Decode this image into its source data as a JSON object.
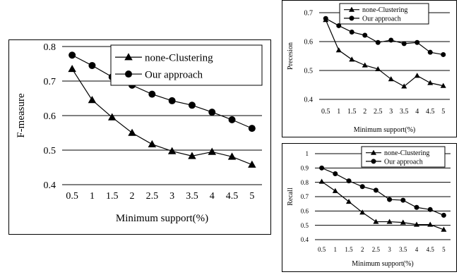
{
  "chart_data": [
    {
      "type": "line",
      "id": "fmeasure",
      "categories": [
        "0.5",
        "1",
        "1.5",
        "2",
        "2.5",
        "3",
        "3.5",
        "4",
        "4.5",
        "5"
      ],
      "series": [
        {
          "name": "none-Clustering",
          "marker": "triangle",
          "values": [
            0.735,
            0.645,
            0.595,
            0.55,
            0.517,
            0.497,
            0.483,
            0.495,
            0.481,
            0.458
          ]
        },
        {
          "name": "Our approach",
          "marker": "circle",
          "values": [
            0.775,
            0.745,
            0.712,
            0.688,
            0.662,
            0.643,
            0.63,
            0.61,
            0.588,
            0.563
          ]
        }
      ],
      "ylabel": "F-measure",
      "xlabel": "Minimum support(%)",
      "ylim": [
        0.4,
        0.8
      ],
      "yticks": [
        "0.4",
        "0.5",
        "0.6",
        "0.7",
        "0.8"
      ],
      "grid": true,
      "legend": "top-right"
    },
    {
      "type": "line",
      "id": "precision",
      "categories": [
        "0.5",
        "1",
        "1.5",
        "2",
        "2.5",
        "3",
        "3.5",
        "4",
        "4.5",
        "5"
      ],
      "series": [
        {
          "name": "none-Clustering",
          "marker": "triangle",
          "values": [
            0.675,
            0.57,
            0.538,
            0.518,
            0.505,
            0.47,
            0.445,
            0.482,
            0.457,
            0.447
          ]
        },
        {
          "name": "Our approach",
          "marker": "circle",
          "values": [
            0.68,
            0.655,
            0.633,
            0.622,
            0.597,
            0.605,
            0.593,
            0.597,
            0.563,
            0.555
          ]
        }
      ],
      "ylabel": "Precesion",
      "xlabel": "Minimum support(%)",
      "ylim": [
        0.4,
        0.7
      ],
      "yticks": [
        "0.4",
        "0.5",
        "0.6",
        "0.7"
      ],
      "grid": true,
      "legend": "top-right"
    },
    {
      "type": "line",
      "id": "recall",
      "categories": [
        "0.5",
        "1",
        "1.5",
        "2",
        "2.5",
        "3",
        "3.5",
        "4",
        "4.5",
        "5"
      ],
      "series": [
        {
          "name": "none-Clustering",
          "marker": "triangle",
          "values": [
            0.805,
            0.74,
            0.665,
            0.59,
            0.525,
            0.525,
            0.52,
            0.505,
            0.505,
            0.47
          ]
        },
        {
          "name": "Our approach",
          "marker": "circle",
          "values": [
            0.9,
            0.86,
            0.81,
            0.77,
            0.745,
            0.68,
            0.675,
            0.625,
            0.61,
            0.57
          ]
        }
      ],
      "ylabel": "Recall",
      "xlabel": "Minimum support(%)",
      "ylim": [
        0.4,
        1.0
      ],
      "yticks": [
        "0.4",
        "0.5",
        "0.6",
        "0.7",
        "0.8",
        "0.9",
        "1"
      ],
      "grid": true,
      "legend": "top-right"
    }
  ]
}
